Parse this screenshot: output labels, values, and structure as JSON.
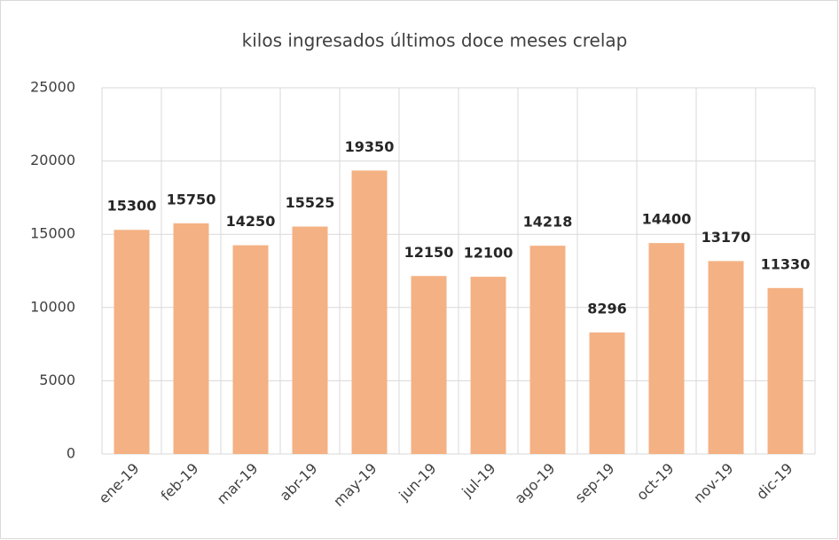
{
  "chart_data": {
    "type": "bar",
    "title": "kilos ingresados últimos doce meses crelap",
    "categories": [
      "ene-19",
      "feb-19",
      "mar-19",
      "abr-19",
      "may-19",
      "jun-19",
      "jul-19",
      "ago-19",
      "sep-19",
      "oct-19",
      "nov-19",
      "dic-19"
    ],
    "values": [
      15300,
      15750,
      14250,
      15525,
      19350,
      12150,
      12100,
      14218,
      8296,
      14400,
      13170,
      11330
    ],
    "color": "#f4b183",
    "ylim": [
      0,
      25000
    ],
    "yticks": [
      0,
      5000,
      10000,
      15000,
      20000,
      25000
    ],
    "grid": true
  }
}
